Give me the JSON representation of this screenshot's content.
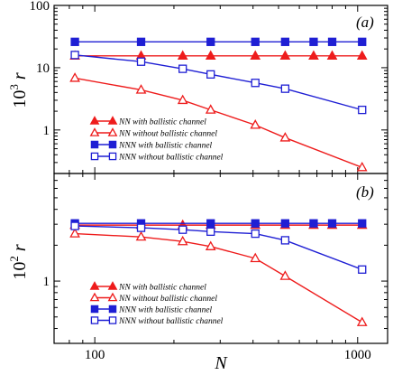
{
  "chart_data": [
    {
      "type": "line",
      "panel_tag": "(a)",
      "ylabel_base": "10",
      "ylabel_exp": "3",
      "ylabel_var": "r",
      "xscale": "log",
      "yscale": "log",
      "xlim": [
        70,
        1300
      ],
      "ylim": [
        0.2,
        100
      ],
      "yticks": [
        1,
        10,
        100
      ],
      "ytick_labels": [
        "1",
        "10",
        "100"
      ],
      "legend_placement": "lower-left",
      "series": [
        {
          "name": "NN with ballistic channel",
          "color": "#ee1c1c",
          "marker": "triangle",
          "filled": true,
          "x": [
            84,
            150,
            216,
            276,
            408,
            530,
            680,
            800,
            1040
          ],
          "y": [
            15.5,
            15.5,
            15.5,
            15.5,
            15.5,
            15.5,
            15.5,
            15.5,
            15.5
          ]
        },
        {
          "name": "NN without ballistic channel",
          "color": "#ee1c1c",
          "marker": "triangle",
          "filled": false,
          "x": [
            84,
            150,
            216,
            276,
            408,
            530,
            1040
          ],
          "y": [
            6.8,
            4.4,
            3.0,
            2.1,
            1.2,
            0.75,
            0.25
          ]
        },
        {
          "name": "NNN with ballistic channel",
          "color": "#1f1fd4",
          "marker": "square",
          "filled": true,
          "x": [
            84,
            150,
            276,
            408,
            530,
            680,
            800,
            1040
          ],
          "y": [
            26,
            26,
            26,
            26,
            26,
            26,
            26,
            26
          ]
        },
        {
          "name": "NNN without ballistic channel",
          "color": "#1f1fd4",
          "marker": "square",
          "filled": false,
          "x": [
            84,
            150,
            216,
            276,
            408,
            530,
            1040
          ],
          "y": [
            16.0,
            12.5,
            9.6,
            7.8,
            5.7,
            4.6,
            2.1
          ]
        }
      ]
    },
    {
      "type": "line",
      "panel_tag": "(b)",
      "ylabel_base": "10",
      "ylabel_exp": "2",
      "ylabel_var": "r",
      "xscale": "log",
      "yscale": "log",
      "xlim": [
        70,
        1300
      ],
      "ylim": [
        0.3,
        8
      ],
      "yticks": [
        1
      ],
      "ytick_labels": [
        "1"
      ],
      "xticks": [
        100,
        1000
      ],
      "xtick_labels": [
        "100",
        "1000"
      ],
      "xlabel": "N",
      "legend_placement": "lower-left",
      "series": [
        {
          "name": "NN with ballistic channel",
          "color": "#ee1c1c",
          "marker": "triangle",
          "filled": true,
          "x": [
            84,
            150,
            216,
            276,
            408,
            530,
            680,
            800,
            1040
          ],
          "y": [
            2.95,
            2.95,
            2.95,
            2.95,
            2.95,
            2.95,
            2.95,
            2.95,
            2.95
          ]
        },
        {
          "name": "NN without ballistic channel",
          "color": "#ee1c1c",
          "marker": "triangle",
          "filled": false,
          "x": [
            84,
            150,
            216,
            276,
            408,
            530,
            1040
          ],
          "y": [
            2.5,
            2.35,
            2.15,
            1.95,
            1.55,
            1.1,
            0.45
          ]
        },
        {
          "name": "NNN  with ballistic channel",
          "color": "#1f1fd4",
          "marker": "square",
          "filled": true,
          "x": [
            84,
            150,
            276,
            408,
            530,
            680,
            800,
            1040
          ],
          "y": [
            3.05,
            3.05,
            3.05,
            3.05,
            3.05,
            3.05,
            3.05,
            3.05
          ]
        },
        {
          "name": "NNN without ballistic channel",
          "color": "#1f1fd4",
          "marker": "square",
          "filled": false,
          "x": [
            84,
            150,
            216,
            276,
            408,
            530,
            1040
          ],
          "y": [
            2.9,
            2.8,
            2.7,
            2.6,
            2.5,
            2.2,
            1.25
          ]
        }
      ]
    }
  ]
}
